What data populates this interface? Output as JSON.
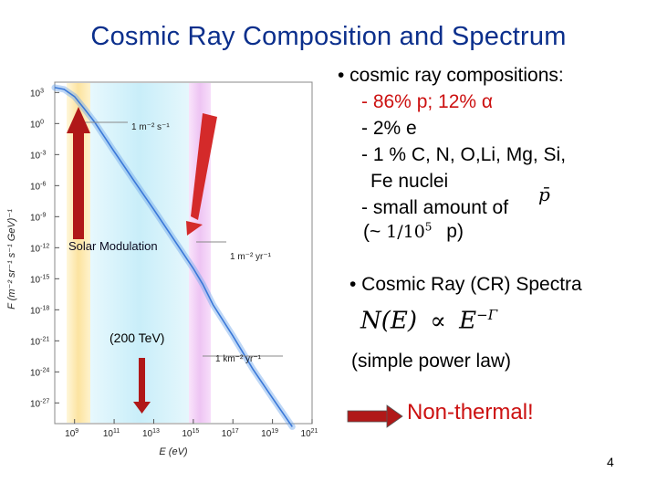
{
  "slide": {
    "title": "Cosmic Ray Composition and Spectrum",
    "page_number": "4"
  },
  "bullets": {
    "b1": "• cosmic ray compositions:",
    "b1_proton": "- 86% p; 12% α",
    "b1_electron": "- 2% e",
    "b1_nuclei_line1": "- 1 % C, N, O,Li, Mg, Si,",
    "b1_nuclei_line2": "Fe nuclei",
    "b1_small": "- small amount of",
    "b1_pbar_symbol": "p̄",
    "b1_ratio_open": "(~",
    "b1_ratio_num": "1/10",
    "b1_ratio_exp": "5",
    "b1_ratio_close": "p)",
    "b2": "• Cosmic Ray (CR) Spectra",
    "formula_lhs": "N(E)",
    "formula_prop": "∝",
    "formula_rhs": "E",
    "formula_exp": "−Γ",
    "simple_power": "(simple power law)",
    "nonthermal": "Non-thermal!"
  },
  "figure": {
    "y_axis_label": "F (m⁻² sr⁻¹ s⁻¹ GeV)⁻¹",
    "x_axis_label": "E (eV)",
    "annot_m2s": "1 m⁻² s⁻¹",
    "annot_m2yr": "1 m⁻² yr⁻¹",
    "annot_km2yr": "1 km⁻² yr⁻¹",
    "solar_modulation": "Solar Modulation",
    "knee_label": "(200 TeV)",
    "colors": {
      "arrow": "#b01818",
      "band_yellow": "#fce9a8",
      "band_cyan": "#cdeff8",
      "band_violet": "#f0c8f4",
      "curve": "#3a78d8"
    }
  },
  "chart_data": {
    "type": "line",
    "xscale": "log",
    "yscale": "log",
    "x_ticks": [
      "10^9",
      "10^11",
      "10^13",
      "10^15",
      "10^17",
      "10^19",
      "10^21"
    ],
    "y_ticks": [
      "10^3",
      "10^0",
      "10^-3",
      "10^-6",
      "10^-9",
      "10^-12",
      "10^-15",
      "10^-18",
      "10^-21",
      "10^-24",
      "10^-27"
    ],
    "xlim": [
      100000000.0,
      1e+21
    ],
    "ylim": [
      1e-29,
      10000.0
    ],
    "series": [
      {
        "x": [
          100000000.0,
          300000000.0,
          1000000000.0,
          3000000000.0,
          10000000000.0,
          100000000000.0,
          1000000000000.0,
          10000000000000.0,
          100000000000000.0,
          1000000000000000.0,
          3000000000000000.0,
          1e+16,
          1e+17,
          1e+18,
          1e+19,
          1e+20
        ],
        "y": [
          3000.0,
          2000.0,
          400.0,
          30.0,
          1.5,
          0.002,
          3e-06,
          5e-09,
          7e-12,
          1e-14,
          3e-16,
          3e-18,
          3e-21,
          2e-24,
          3e-27,
          5e-30
        ]
      }
    ]
  }
}
